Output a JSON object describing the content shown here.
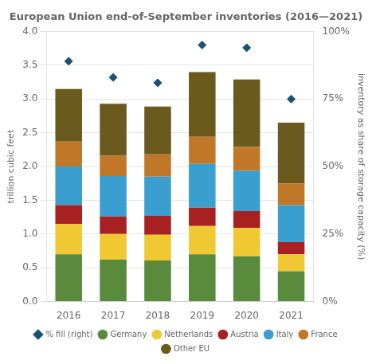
{
  "chart_data": {
    "type": "bar",
    "title": "European Union end-of-September inventories (2016—2021)",
    "y_label": "trillion cubic feet",
    "y2_label": "inventory as share of storage capacity (%)",
    "categories": [
      "2016",
      "2017",
      "2018",
      "2019",
      "2020",
      "2021"
    ],
    "stacked": true,
    "series": [
      {
        "name": "Germany",
        "color": "#5a8a3c",
        "values": [
          0.7,
          0.62,
          0.61,
          0.7,
          0.67,
          0.45
        ]
      },
      {
        "name": "Netherlands",
        "color": "#f0c832",
        "values": [
          0.45,
          0.38,
          0.38,
          0.42,
          0.42,
          0.25
        ]
      },
      {
        "name": "Austria",
        "color": "#a82020",
        "values": [
          0.28,
          0.26,
          0.28,
          0.27,
          0.25,
          0.18
        ]
      },
      {
        "name": "Italy",
        "color": "#3a9ecf",
        "values": [
          0.57,
          0.6,
          0.58,
          0.65,
          0.6,
          0.55
        ]
      },
      {
        "name": "France",
        "color": "#c07828",
        "values": [
          0.37,
          0.3,
          0.33,
          0.4,
          0.35,
          0.32
        ]
      },
      {
        "name": "Other EU",
        "color": "#6b5a1e",
        "values": [
          0.78,
          0.77,
          0.71,
          0.96,
          1.0,
          0.9
        ]
      },
      {
        "name": "% fill (right)",
        "type": "scatter",
        "marker": "diamond",
        "color": "#1a5276",
        "axis": "y2",
        "values": [
          89,
          83,
          81,
          95,
          94,
          75
        ]
      }
    ],
    "ylim": [
      0,
      4.0
    ],
    "yticks": [
      {
        "value": 0,
        "label": "0.0"
      },
      0.5,
      {
        "value": 1,
        "label": "1.0"
      },
      1.5,
      {
        "value": 2,
        "label": "2.0"
      },
      2.5,
      {
        "value": 3,
        "label": "3.0"
      },
      3.5,
      {
        "value": 4,
        "label": "4.0"
      }
    ],
    "y2lim": [
      0,
      100
    ],
    "y2ticks": [
      {
        "value": 0,
        "label": "0%"
      },
      {
        "value": 25,
        "label": "25%"
      },
      {
        "value": 50,
        "label": "50%"
      },
      {
        "value": 75,
        "label": "75%"
      },
      {
        "value": 100,
        "label": "100%"
      }
    ],
    "grid": true,
    "legend": "bottom"
  }
}
